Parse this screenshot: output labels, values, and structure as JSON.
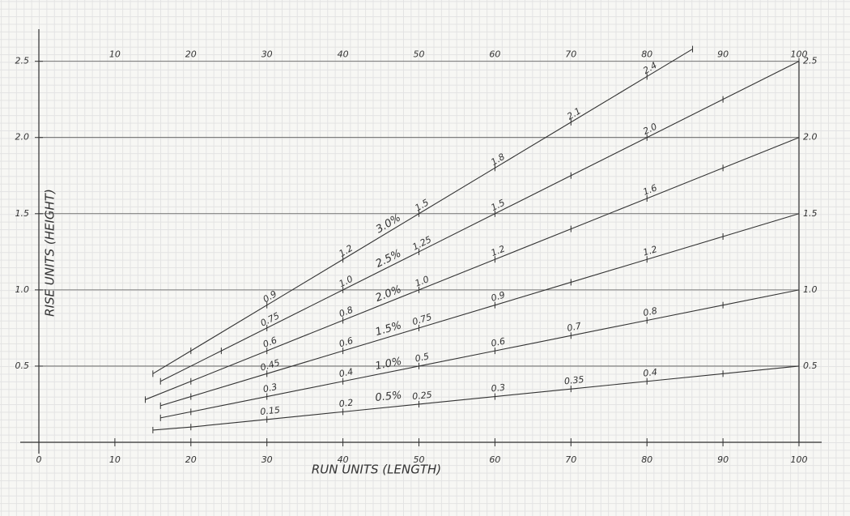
{
  "chart_data": {
    "type": "line",
    "y_label": "RISE UNITS (HEIGHT)",
    "x_label": "RUN UNITS (LENGTH)",
    "xlim": [
      0,
      100
    ],
    "ylim": [
      0,
      2.7
    ],
    "xticks": [
      0,
      10,
      20,
      30,
      40,
      50,
      60,
      70,
      80,
      90,
      100
    ],
    "yticks": [
      0.5,
      {
        "value": 1,
        "label": "1.0"
      },
      1.5,
      {
        "value": 2,
        "label": "2.0"
      },
      2.5
    ],
    "grid": true,
    "series": [
      {
        "name": "3.0%",
        "color": "#333333",
        "x": [
          15,
          20,
          30,
          40,
          50,
          60,
          70,
          80,
          86
        ],
        "values": [
          0.45,
          0.6,
          0.9,
          1.2,
          1.5,
          1.8,
          2.1,
          2.4,
          2.58
        ],
        "value_labels": [
          null,
          null,
          "0.9",
          "1.2",
          "1.5",
          "1.8",
          "2.1",
          "2.4",
          null
        ]
      },
      {
        "name": "2.5%",
        "color": "#333333",
        "x": [
          16,
          24,
          30,
          40,
          50,
          60,
          70,
          80,
          90,
          100
        ],
        "values": [
          0.4,
          0.6,
          0.75,
          1,
          1.25,
          1.5,
          1.75,
          2,
          2.25,
          2.5
        ],
        "value_labels": [
          null,
          null,
          "0.75",
          "1.0",
          "1.25",
          "1.5",
          null,
          "2.0",
          null,
          null
        ]
      },
      {
        "name": "2.0%",
        "color": "#333333",
        "x": [
          14,
          20,
          30,
          40,
          50,
          60,
          70,
          80,
          90,
          100
        ],
        "values": [
          0.28,
          0.4,
          0.6,
          0.8,
          1,
          1.2,
          1.4,
          1.6,
          1.8,
          2
        ],
        "value_labels": [
          null,
          null,
          "0.6",
          "0.8",
          "1.0",
          "1.2",
          null,
          "1.6",
          null,
          null
        ]
      },
      {
        "name": "1.5%",
        "color": "#333333",
        "x": [
          16,
          20,
          30,
          40,
          50,
          60,
          70,
          80,
          90,
          100
        ],
        "values": [
          0.24,
          0.3,
          0.45,
          0.6,
          0.75,
          0.9,
          1.05,
          1.2,
          1.35,
          1.5
        ],
        "value_labels": [
          null,
          null,
          "0.45",
          "0.6",
          "0.75",
          "0.9",
          null,
          "1.2",
          null,
          null
        ]
      },
      {
        "name": "1.0%",
        "color": "#333333",
        "x": [
          16,
          20,
          30,
          40,
          50,
          60,
          70,
          80,
          90,
          100
        ],
        "values": [
          0.16,
          0.2,
          0.3,
          0.4,
          0.5,
          0.6,
          0.7,
          0.8,
          0.9,
          1
        ],
        "value_labels": [
          null,
          null,
          "0.3",
          "0.4",
          "0.5",
          "0.6",
          "0.7",
          "0.8",
          null,
          null
        ]
      },
      {
        "name": "0.5%",
        "color": "#333333",
        "x": [
          15,
          20,
          30,
          40,
          50,
          60,
          70,
          80,
          90,
          100
        ],
        "values": [
          0.08,
          0.1,
          0.15,
          0.2,
          0.25,
          0.3,
          0.35,
          0.4,
          0.45,
          0.5
        ],
        "value_labels": [
          null,
          null,
          "0.15",
          "0.2",
          "0.25",
          "0.3",
          "0.35",
          "0.4",
          null,
          null
        ]
      }
    ]
  }
}
